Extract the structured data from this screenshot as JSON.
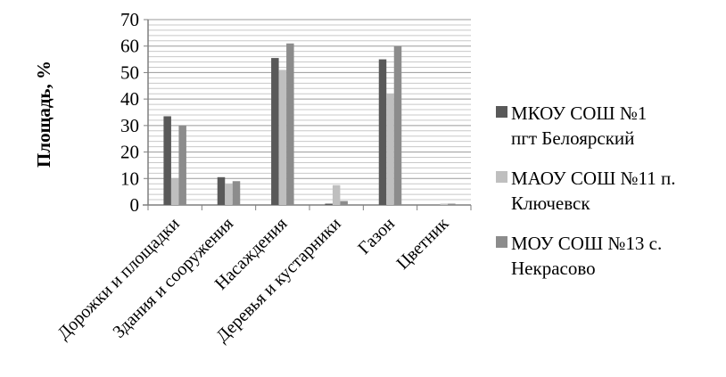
{
  "chart_data": {
    "type": "bar",
    "title": "",
    "xlabel": "",
    "ylabel": "Площадь, %",
    "ylim": [
      0,
      70
    ],
    "ytick_step": 10,
    "grid": true,
    "legend_position": "right",
    "categories": [
      "Дорожки и площадки",
      "Здания и сооружения",
      "Насаждения",
      "Деревья и кустарники",
      "Газон",
      "Цветник"
    ],
    "series": [
      {
        "name": "МКОУ СОШ №1 пгт Белоярский",
        "legend_lines": [
          "МКОУ СОШ №1",
          "пгт Белоярский"
        ],
        "color": "#595959",
        "values": [
          33.5,
          10.5,
          55.5,
          0.5,
          55,
          0
        ]
      },
      {
        "name": "МАОУ СОШ №11 п. Ключевск",
        "legend_lines": [
          "МАОУ СОШ №11 п.",
          "Ключевск"
        ],
        "color": "#bfbfbf",
        "values": [
          10,
          8,
          51,
          7.5,
          42,
          0.5
        ]
      },
      {
        "name": "МОУ СОШ №13 с. Некрасово",
        "legend_lines": [
          "МОУ СОШ №13 с.",
          "Некрасово"
        ],
        "color": "#8c8c8c",
        "values": [
          30,
          9,
          61,
          1.5,
          60,
          0.5
        ]
      }
    ]
  }
}
